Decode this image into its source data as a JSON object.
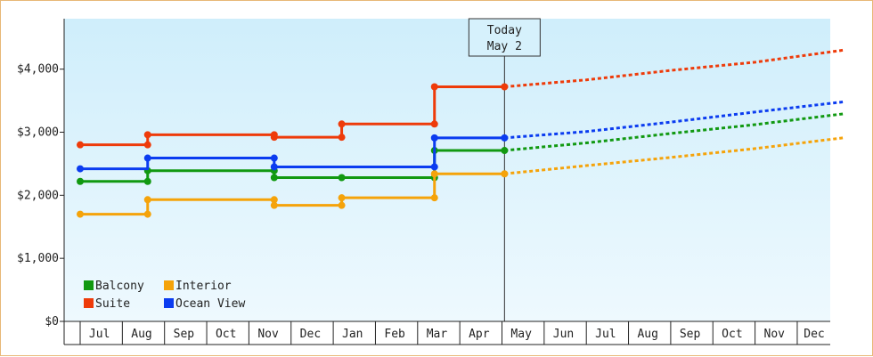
{
  "chart_data": {
    "type": "line",
    "title": "",
    "xlabel": "",
    "ylabel": "",
    "x_labels": [
      "Jul",
      "Aug",
      "Sep",
      "Oct",
      "Nov",
      "Dec",
      "Jan",
      "Feb",
      "Mar",
      "Apr",
      "May",
      "Jun",
      "Jul",
      "Aug",
      "Sep",
      "Oct",
      "Nov",
      "Dec"
    ],
    "y_ticks": [
      "$0",
      "$1,000",
      "$2,000",
      "$3,000",
      "$4,000"
    ],
    "ylim": [
      0,
      4800
    ],
    "grid": false,
    "legend_position": "bottom-left",
    "today": {
      "line1": "Today",
      "line2": "May 2",
      "x": 10.06
    },
    "series": [
      {
        "name": "Balcony",
        "color": "#119911",
        "history": [
          [
            0,
            2220
          ],
          [
            1.6,
            2220
          ],
          [
            1.6,
            2390
          ],
          [
            4.6,
            2390
          ],
          [
            4.6,
            2280
          ],
          [
            8.4,
            2280
          ],
          [
            8.4,
            2710
          ],
          [
            10.06,
            2710
          ]
        ],
        "forecast": [
          [
            10.06,
            2710
          ],
          [
            12,
            2830
          ],
          [
            14,
            2980
          ],
          [
            16,
            3120
          ],
          [
            18.08,
            3290
          ]
        ]
      },
      {
        "name": "Interior",
        "color": "#f5a30a",
        "history": [
          [
            0,
            1700
          ],
          [
            1.6,
            1700
          ],
          [
            1.6,
            1930
          ],
          [
            4.6,
            1930
          ],
          [
            4.6,
            1840
          ],
          [
            6.2,
            1840
          ],
          [
            6.2,
            1960
          ],
          [
            8.4,
            1960
          ],
          [
            8.4,
            2340
          ],
          [
            10.06,
            2340
          ]
        ],
        "forecast": [
          [
            10.06,
            2340
          ],
          [
            12,
            2470
          ],
          [
            14,
            2600
          ],
          [
            16,
            2740
          ],
          [
            18.08,
            2910
          ]
        ]
      },
      {
        "name": "Suite",
        "color": "#ee3b0a",
        "history": [
          [
            0,
            2800
          ],
          [
            1.6,
            2800
          ],
          [
            1.6,
            2960
          ],
          [
            4.6,
            2960
          ],
          [
            4.6,
            2920
          ],
          [
            6.2,
            2920
          ],
          [
            6.2,
            3130
          ],
          [
            8.4,
            3130
          ],
          [
            8.4,
            3720
          ],
          [
            10.06,
            3720
          ]
        ],
        "forecast": [
          [
            10.06,
            3720
          ],
          [
            12,
            3830
          ],
          [
            14,
            3980
          ],
          [
            16,
            4110
          ],
          [
            18.08,
            4300
          ]
        ]
      },
      {
        "name": "Ocean View",
        "color": "#0b3cf0",
        "history": [
          [
            0,
            2420
          ],
          [
            1.6,
            2420
          ],
          [
            1.6,
            2590
          ],
          [
            4.6,
            2590
          ],
          [
            4.6,
            2450
          ],
          [
            8.4,
            2450
          ],
          [
            8.4,
            2910
          ],
          [
            10.06,
            2910
          ]
        ],
        "forecast": [
          [
            10.06,
            2910
          ],
          [
            12,
            3010
          ],
          [
            14,
            3160
          ],
          [
            16,
            3320
          ],
          [
            18.08,
            3480
          ]
        ]
      }
    ],
    "markers": {
      "Balcony": [
        [
          0,
          2220
        ],
        [
          1.6,
          2220
        ],
        [
          1.6,
          2390
        ],
        [
          4.6,
          2390
        ],
        [
          4.6,
          2280
        ],
        [
          6.2,
          2280
        ],
        [
          8.4,
          2280
        ],
        [
          8.4,
          2710
        ],
        [
          10.06,
          2710
        ]
      ],
      "Interior": [
        [
          0,
          1700
        ],
        [
          1.6,
          1700
        ],
        [
          1.6,
          1930
        ],
        [
          4.6,
          1930
        ],
        [
          4.6,
          1840
        ],
        [
          6.2,
          1840
        ],
        [
          6.2,
          1960
        ],
        [
          8.4,
          1960
        ],
        [
          8.4,
          2340
        ],
        [
          10.06,
          2340
        ]
      ],
      "Suite": [
        [
          0,
          2800
        ],
        [
          1.6,
          2800
        ],
        [
          1.6,
          2960
        ],
        [
          4.6,
          2960
        ],
        [
          4.6,
          2920
        ],
        [
          6.2,
          2920
        ],
        [
          6.2,
          3130
        ],
        [
          8.4,
          3130
        ],
        [
          8.4,
          3720
        ],
        [
          10.06,
          3720
        ]
      ],
      "Ocean View": [
        [
          0,
          2420
        ],
        [
          1.6,
          2590
        ],
        [
          4.6,
          2590
        ],
        [
          4.6,
          2450
        ],
        [
          8.4,
          2450
        ],
        [
          8.4,
          2910
        ],
        [
          10.06,
          2910
        ]
      ]
    },
    "background": {
      "top": "#cfeefb",
      "bottom": "#eef9fe"
    },
    "axis_color": "#222222"
  }
}
